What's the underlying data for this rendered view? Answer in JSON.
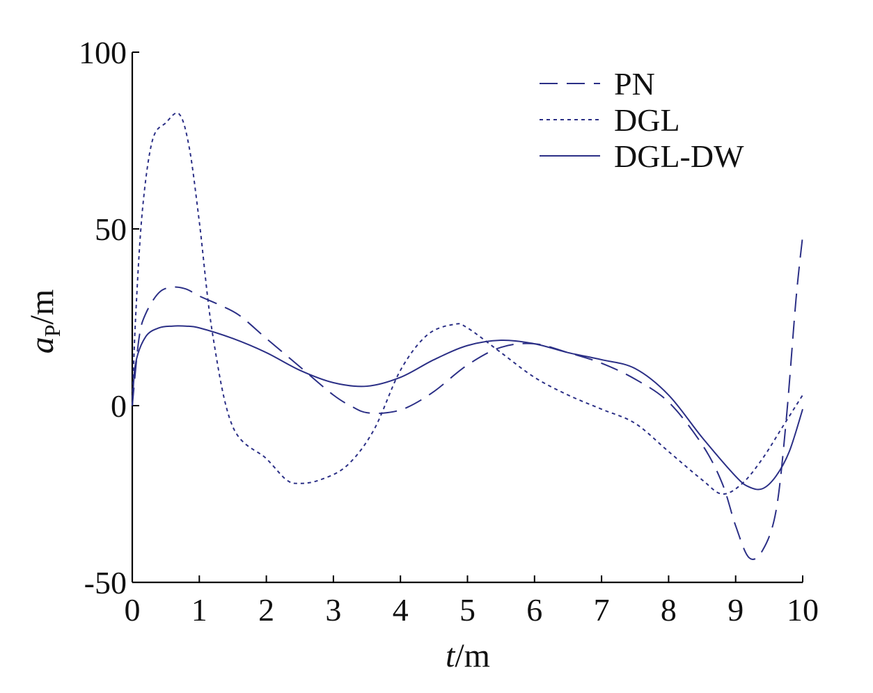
{
  "chart_data": {
    "type": "line",
    "title": "",
    "xlabel_italic": "t",
    "xlabel_unit": "/m",
    "ylabel_italic": "a",
    "ylabel_sub": "P",
    "ylabel_unit": "/m",
    "xlim": [
      0,
      10
    ],
    "ylim": [
      -50,
      100
    ],
    "xticks": [
      0,
      1,
      2,
      3,
      4,
      5,
      6,
      7,
      8,
      9,
      10
    ],
    "xtick_labels": [
      "0",
      "1",
      "2",
      "3",
      "4",
      "5",
      "6",
      "7",
      "8",
      "9",
      "10"
    ],
    "yticks": [
      -50,
      0,
      50,
      100
    ],
    "ytick_labels": [
      "-50",
      "0",
      "50",
      "100"
    ],
    "grid": false,
    "legend_position": "top-right",
    "series_color": "#2b2f86",
    "series": [
      {
        "name": "PN",
        "dash": "long-dash",
        "x": [
          0,
          0.1,
          0.2,
          0.4,
          0.6,
          0.8,
          1.0,
          1.3,
          1.6,
          2.0,
          2.5,
          3.0,
          3.3,
          3.5,
          3.8,
          4.1,
          4.5,
          5.0,
          5.5,
          6.0,
          6.5,
          7.0,
          7.5,
          8.0,
          8.5,
          8.8,
          9.0,
          9.2,
          9.4,
          9.6,
          9.75,
          9.9,
          10.0
        ],
        "y": [
          0,
          19,
          26,
          32,
          33.5,
          33,
          31,
          28.5,
          25.5,
          19,
          11,
          3,
          -0.5,
          -2,
          -2,
          -0.5,
          4,
          11.5,
          16.5,
          17.5,
          15,
          12,
          7.5,
          1,
          -11,
          -22,
          -34,
          -43,
          -41,
          -30,
          -5,
          30,
          48
        ]
      },
      {
        "name": "DGL",
        "dash": "dotted",
        "x": [
          0,
          0.05,
          0.15,
          0.3,
          0.5,
          0.7,
          0.85,
          1.0,
          1.2,
          1.5,
          2.0,
          2.3,
          2.5,
          2.8,
          3.2,
          3.6,
          4.0,
          4.4,
          4.8,
          5.0,
          5.5,
          6.0,
          6.5,
          7.0,
          7.5,
          8.0,
          8.5,
          8.8,
          9.1,
          9.4,
          9.7,
          10.0
        ],
        "y": [
          0,
          25,
          55,
          75,
          80,
          82.5,
          73,
          52,
          20,
          -6,
          -15,
          -21,
          -22,
          -21,
          -17,
          -7,
          10,
          20,
          23,
          22,
          15,
          8,
          3,
          -1,
          -5,
          -13,
          -21,
          -25,
          -22,
          -15,
          -6,
          3
        ]
      },
      {
        "name": "DGL-DW",
        "dash": "solid",
        "x": [
          0,
          0.05,
          0.2,
          0.4,
          0.6,
          0.8,
          1.0,
          1.5,
          2.0,
          2.5,
          3.0,
          3.5,
          4.0,
          4.5,
          5.0,
          5.5,
          6.0,
          6.5,
          7.0,
          7.5,
          8.0,
          8.5,
          9.0,
          9.2,
          9.4,
          9.6,
          9.8,
          10.0
        ],
        "y": [
          0,
          12,
          19.5,
          22,
          22.5,
          22.5,
          22,
          19,
          15,
          10,
          6.5,
          5.5,
          8,
          13,
          17,
          18.5,
          17.5,
          15,
          13,
          10.5,
          3,
          -9,
          -20,
          -23,
          -23.5,
          -20,
          -13,
          -1
        ]
      }
    ]
  }
}
